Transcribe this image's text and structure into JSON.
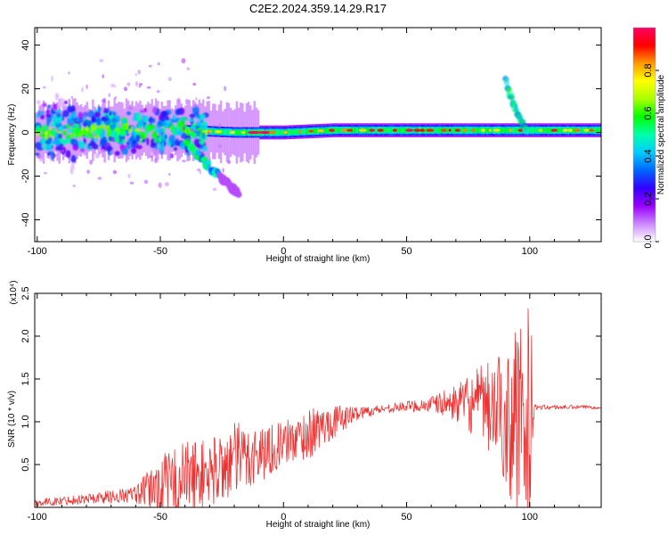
{
  "title": "C2E2.2024.359.14.29.R17",
  "chart_data": [
    {
      "type": "heatmap",
      "name": "spectrogram",
      "xlabel": "Height of straight line (km)",
      "ylabel": "Frequency (Hz)",
      "xlim": [
        -101,
        129
      ],
      "ylim": [
        -50,
        48
      ],
      "xticks": [
        -100,
        -50,
        0,
        50,
        100
      ],
      "xtick_labels": [
        "-100",
        "-50",
        "0",
        "50",
        "100"
      ],
      "yticks": [
        -40,
        -20,
        0,
        20,
        40
      ],
      "ytick_labels": [
        "-40",
        "-20",
        "0",
        "20",
        "40"
      ],
      "ridge": [
        {
          "x": -101,
          "y": 0
        },
        {
          "x": -80,
          "y": 1
        },
        {
          "x": -60,
          "y": 1
        },
        {
          "x": -40,
          "y": 1
        },
        {
          "x": -20,
          "y": 0
        },
        {
          "x": 0,
          "y": 0
        },
        {
          "x": 20,
          "y": 1
        },
        {
          "x": 50,
          "y": 1
        },
        {
          "x": 80,
          "y": 1
        },
        {
          "x": 100,
          "y": 1
        },
        {
          "x": 129,
          "y": 1
        }
      ],
      "branches": [
        {
          "name": "descending-branch",
          "points": [
            {
              "x": -40,
              "y": -4
            },
            {
              "x": -35,
              "y": -10
            },
            {
              "x": -30,
              "y": -16
            },
            {
              "x": -26,
              "y": -20
            }
          ]
        },
        {
          "name": "tail-branch",
          "points": [
            {
              "x": -26,
              "y": -20
            },
            {
              "x": -22,
              "y": -24
            },
            {
              "x": -18,
              "y": -28
            }
          ]
        },
        {
          "name": "rising-branch",
          "points": [
            {
              "x": 90,
              "y": 24
            },
            {
              "x": 93,
              "y": 14
            },
            {
              "x": 96,
              "y": 6
            },
            {
              "x": 99,
              "y": 1
            }
          ]
        }
      ],
      "colorbar": {
        "label": "Normalized spectral amplitude",
        "range": [
          0,
          1
        ],
        "ticks": [
          0,
          0.2,
          0.4,
          0.6,
          0.8
        ],
        "tick_labels": [
          "0.0",
          "0.2",
          "0.4",
          "0.6",
          "0.8"
        ],
        "colors": [
          "#ffffff",
          "#cc88ff",
          "#9900ff",
          "#3300ff",
          "#0066ff",
          "#00ccff",
          "#00ffaa",
          "#00ff00",
          "#aaff00",
          "#ffff00",
          "#ff9900",
          "#ff0000",
          "#ff0066"
        ]
      }
    },
    {
      "type": "line",
      "name": "snr",
      "xlabel": "Height of straight line (km)",
      "ylabel": "SNR (10 * v/v)",
      "multiplier": "(x10⁴)",
      "xlim": [
        -101,
        129
      ],
      "ylim": [
        0,
        2.5
      ],
      "xticks": [
        -100,
        -50,
        0,
        50,
        100
      ],
      "xtick_labels": [
        "-100",
        "-50",
        "0",
        "50",
        "100"
      ],
      "yticks": [
        0.5,
        1.0,
        1.5,
        2.0,
        2.5
      ],
      "ytick_labels": [
        "0.5",
        "1.0",
        "1.5",
        "2.0",
        "2.5"
      ],
      "color": "#ee3333",
      "envelope": [
        {
          "x": -101,
          "mean": 0.05,
          "amp": 0.04
        },
        {
          "x": -80,
          "mean": 0.1,
          "amp": 0.06
        },
        {
          "x": -60,
          "mean": 0.15,
          "amp": 0.1
        },
        {
          "x": -50,
          "mean": 0.25,
          "amp": 0.35
        },
        {
          "x": -40,
          "mean": 0.35,
          "amp": 0.45
        },
        {
          "x": -30,
          "mean": 0.4,
          "amp": 0.4
        },
        {
          "x": -20,
          "mean": 0.55,
          "amp": 0.45
        },
        {
          "x": -10,
          "mean": 0.62,
          "amp": 0.35
        },
        {
          "x": 0,
          "mean": 0.75,
          "amp": 0.25
        },
        {
          "x": 10,
          "mean": 0.85,
          "amp": 0.3
        },
        {
          "x": 20,
          "mean": 1.0,
          "amp": 0.2
        },
        {
          "x": 30,
          "mean": 1.1,
          "amp": 0.08
        },
        {
          "x": 40,
          "mean": 1.15,
          "amp": 0.05
        },
        {
          "x": 50,
          "mean": 1.18,
          "amp": 0.06
        },
        {
          "x": 60,
          "mean": 1.2,
          "amp": 0.1
        },
        {
          "x": 70,
          "mean": 1.22,
          "amp": 0.2
        },
        {
          "x": 80,
          "mean": 1.2,
          "amp": 0.45
        },
        {
          "x": 88,
          "mean": 1.1,
          "amp": 0.7
        },
        {
          "x": 95,
          "mean": 1.0,
          "amp": 1.1
        },
        {
          "x": 100,
          "mean": 1.2,
          "amp": 1.3
        },
        {
          "x": 102,
          "mean": 1.17,
          "amp": 0.03
        },
        {
          "x": 129,
          "mean": 1.17,
          "amp": 0.02
        }
      ]
    }
  ]
}
